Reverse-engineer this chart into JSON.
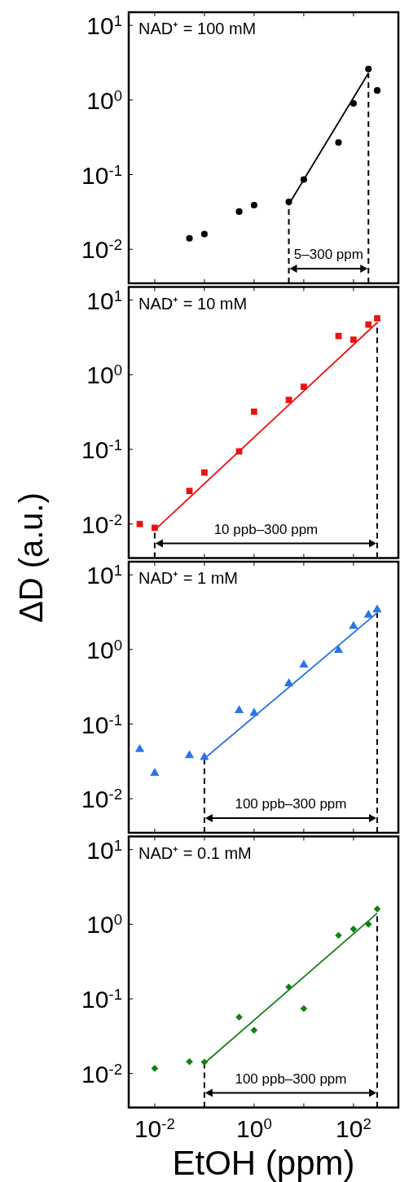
{
  "chart_data": [
    {
      "type": "scatter",
      "title": "NAD⁺ = 100 mM",
      "log": "xy",
      "xlim": [
        0.003,
        800
      ],
      "ylim": [
        0.0035,
        15
      ],
      "tick_labels": "y",
      "marker": "circle",
      "xticks": [
        {
          "value": 0.01,
          "label": null
        },
        {
          "value": 0.1,
          "label": null
        },
        {
          "value": 1,
          "label": null
        },
        {
          "value": 10,
          "label": null
        },
        {
          "value": 100,
          "label": null
        }
      ],
      "yticks": [
        {
          "value": 10,
          "label": "10$^{1}$"
        },
        {
          "value": 1,
          "label": "10$^{0}$"
        },
        {
          "value": 0.1,
          "label": "10$^{-1}$"
        },
        {
          "value": 0.01,
          "label": "10$^{-2}$"
        }
      ],
      "series": [
        {
          "type": "scatter",
          "color": "#000000",
          "x": [
            0.05,
            0.1,
            0.5,
            1,
            5,
            10,
            50,
            100,
            200,
            300
          ],
          "values": [
            0.014,
            0.016,
            0.032,
            0.039,
            0.043,
            0.086,
            0.27,
            0.9,
            2.6,
            1.34
          ]
        },
        {
          "type": "line",
          "marker": "none",
          "color": "#000000",
          "x": [
            5,
            200
          ],
          "values": [
            0.04,
            2.3
          ]
        }
      ],
      "ref_lines": [
        {
          "axis": "x",
          "value": 5,
          "line_style": "dashed"
        },
        {
          "axis": "x",
          "value": 200,
          "line_style": "dashed"
        }
      ],
      "annotations": [
        "5–300 ppm"
      ]
    },
    {
      "type": "scatter",
      "title": "NAD⁺ = 10 mM",
      "log": "xy",
      "xlim": [
        0.003,
        800
      ],
      "ylim": [
        0.0035,
        15
      ],
      "tick_labels": "y",
      "marker": "square",
      "ylabel": "ΔD (a.u.)",
      "xticks": [
        {
          "value": 0.01,
          "label": null
        },
        {
          "value": 0.1,
          "label": null
        },
        {
          "value": 1,
          "label": null
        },
        {
          "value": 10,
          "label": null
        },
        {
          "value": 100,
          "label": null
        }
      ],
      "yticks": [
        {
          "value": 10,
          "label": "10$^{1}$"
        },
        {
          "value": 1,
          "label": "10$^{0}$"
        },
        {
          "value": 0.1,
          "label": "10$^{-1}$"
        },
        {
          "value": 0.01,
          "label": "10$^{-2}$"
        }
      ],
      "series": [
        {
          "type": "scatter",
          "color": "#ee1111",
          "x": [
            0.005,
            0.01,
            0.05,
            0.1,
            0.5,
            1,
            5,
            10,
            50,
            100,
            200,
            300
          ],
          "values": [
            0.01,
            0.0089,
            0.0277,
            0.049,
            0.094,
            0.32,
            0.46,
            0.69,
            3.3,
            2.95,
            4.7,
            5.7
          ]
        },
        {
          "type": "line",
          "marker": "none",
          "color": "#ee1111",
          "x": [
            0.01,
            300
          ],
          "values": [
            0.0083,
            5
          ]
        }
      ],
      "ref_lines": [
        {
          "axis": "x",
          "value": 0.01,
          "line_style": "dashed"
        },
        {
          "axis": "x",
          "value": 300,
          "line_style": "dashed"
        }
      ],
      "annotations": [
        "10 ppb–300 ppm"
      ]
    },
    {
      "type": "scatter",
      "title": "NAD⁺ = 1 mM",
      "log": "xy",
      "xlim": [
        0.003,
        800
      ],
      "ylim": [
        0.0035,
        15
      ],
      "tick_labels": "y",
      "marker": "triangle",
      "xticks": [
        {
          "value": 0.01,
          "label": null
        },
        {
          "value": 0.1,
          "label": null
        },
        {
          "value": 1,
          "label": null
        },
        {
          "value": 10,
          "label": null
        },
        {
          "value": 100,
          "label": null
        }
      ],
      "yticks": [
        {
          "value": 10,
          "label": "10$^{1}$"
        },
        {
          "value": 1,
          "label": "10$^{0}$"
        },
        {
          "value": 0.1,
          "label": "10$^{-1}$"
        },
        {
          "value": 0.01,
          "label": "10$^{-2}$"
        }
      ],
      "series": [
        {
          "type": "scatter",
          "color": "#2a74e6",
          "x": [
            0.005,
            0.01,
            0.05,
            0.1,
            0.5,
            1,
            5,
            10,
            50,
            100,
            200,
            300
          ],
          "values": [
            0.046,
            0.022,
            0.038,
            0.036,
            0.152,
            0.14,
            0.35,
            0.62,
            0.98,
            2.05,
            2.9,
            3.4
          ]
        },
        {
          "type": "line",
          "marker": "none",
          "color": "#2a74e6",
          "x": [
            0.1,
            300
          ],
          "values": [
            0.0345,
            3.1
          ]
        }
      ],
      "ref_lines": [
        {
          "axis": "x",
          "value": 0.1,
          "line_style": "dashed"
        },
        {
          "axis": "x",
          "value": 300,
          "line_style": "dashed"
        }
      ],
      "annotations": [
        "100 ppb–300 ppm"
      ]
    },
    {
      "type": "scatter",
      "title": "NAD⁺ = 0.1 mM",
      "log": "xy",
      "xlim": [
        0.003,
        800
      ],
      "ylim": [
        0.0035,
        15
      ],
      "marker": "diamond",
      "xlabel": "EtOH (ppm)",
      "xticks": [
        {
          "value": 0.01,
          "label": "10$^{-2}$"
        },
        {
          "value": 0.1,
          "label": null
        },
        {
          "value": 1,
          "label": "10$^{0}$"
        },
        {
          "value": 10,
          "label": null
        },
        {
          "value": 100,
          "label": "10$^{2}$"
        }
      ],
      "yticks": [
        {
          "value": 10,
          "label": "10$^{1}$"
        },
        {
          "value": 1,
          "label": "10$^{0}$"
        },
        {
          "value": 0.1,
          "label": "10$^{-1}$"
        },
        {
          "value": 0.01,
          "label": "10$^{-2}$"
        }
      ],
      "series": [
        {
          "type": "scatter",
          "color": "#148014",
          "x": [
            0.01,
            0.05,
            0.1,
            0.5,
            1,
            5,
            10,
            50,
            100,
            200,
            300
          ],
          "values": [
            0.0117,
            0.0144,
            0.0142,
            0.057,
            0.038,
            0.144,
            0.074,
            0.71,
            0.86,
            1.0,
            1.6
          ]
        },
        {
          "type": "line",
          "marker": "none",
          "color": "#148014",
          "x": [
            0.1,
            300
          ],
          "values": [
            0.0137,
            1.4
          ]
        }
      ],
      "ref_lines": [
        {
          "axis": "x",
          "value": 0.1,
          "line_style": "dashed"
        },
        {
          "axis": "x",
          "value": 300,
          "line_style": "dashed"
        }
      ],
      "annotations": [
        "100 ppb–300 ppm"
      ]
    }
  ]
}
